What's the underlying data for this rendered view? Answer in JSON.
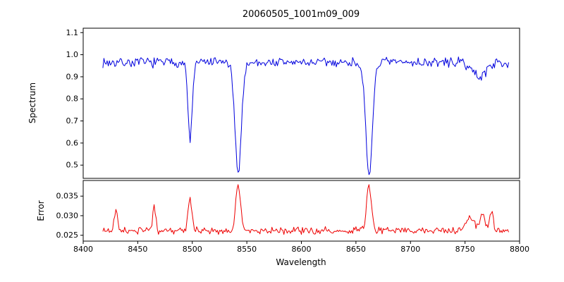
{
  "chart_data": {
    "type": "line",
    "title": "20060505_1001m09_009",
    "xlabel": "Wavelength",
    "x_range": [
      8400,
      8800
    ],
    "x_data_range": [
      8418,
      8790
    ],
    "x_ticks": [
      8400,
      8450,
      8500,
      8550,
      8600,
      8650,
      8700,
      8750,
      8800
    ],
    "x_tick_labels": [
      "8400",
      "8450",
      "8500",
      "8550",
      "8600",
      "8650",
      "8700",
      "8750",
      "8800"
    ],
    "grid": false,
    "legend": "none",
    "seed": 7,
    "panels": [
      {
        "name": "spectrum",
        "ylabel": "Spectrum",
        "color": "#0000dd",
        "ylim": [
          0.44,
          1.12
        ],
        "yticks": [
          1.1,
          1.0,
          0.9,
          0.8,
          0.7,
          0.6,
          0.5
        ],
        "ytick_labels": [
          "1.1",
          "1.0",
          "0.9",
          "0.8",
          "0.7",
          "0.6",
          "0.5"
        ],
        "continuum": 0.965,
        "noise_amp": 0.027,
        "absorption_lines": [
          {
            "center": 8498,
            "min": 0.62,
            "sigma": 2.0
          },
          {
            "center": 8542,
            "min": 0.47,
            "sigma": 3.0
          },
          {
            "center": 8662,
            "min": 0.44,
            "sigma": 3.0
          },
          {
            "center": 8763,
            "min": 0.9,
            "sigma": 6.0
          }
        ]
      },
      {
        "name": "error",
        "ylabel": "Error",
        "color": "#ee0000",
        "ylim": [
          0.0235,
          0.039
        ],
        "yticks": [
          0.035,
          0.03,
          0.025
        ],
        "ytick_labels": [
          "0.035",
          "0.030",
          "0.025"
        ],
        "baseline": 0.0262,
        "noise_amp": 0.0011,
        "peaks": [
          {
            "center": 8430,
            "peak": 0.032,
            "sigma": 1.3
          },
          {
            "center": 8465,
            "peak": 0.033,
            "sigma": 1.3
          },
          {
            "center": 8498,
            "peak": 0.034,
            "sigma": 1.8
          },
          {
            "center": 8542,
            "peak": 0.038,
            "sigma": 2.2
          },
          {
            "center": 8662,
            "peak": 0.0375,
            "sigma": 2.2
          },
          {
            "center": 8755,
            "peak": 0.0295,
            "sigma": 4.0
          },
          {
            "center": 8766,
            "peak": 0.031,
            "sigma": 2.0
          },
          {
            "center": 8774,
            "peak": 0.0312,
            "sigma": 1.6
          }
        ]
      }
    ]
  }
}
